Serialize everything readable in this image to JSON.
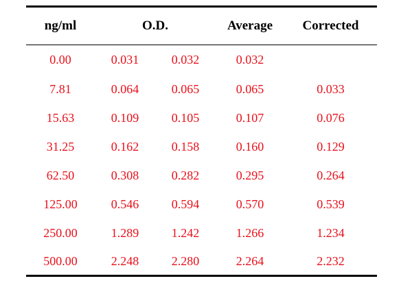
{
  "table": {
    "headers": {
      "concentration": "ng/ml",
      "od": "O.D.",
      "average": "Average",
      "corrected": "Corrected"
    },
    "rows": [
      {
        "concentration": "0.00",
        "od1": "0.031",
        "od2": "0.032",
        "average": "0.032",
        "corrected": ""
      },
      {
        "concentration": "7.81",
        "od1": "0.064",
        "od2": "0.065",
        "average": "0.065",
        "corrected": "0.033"
      },
      {
        "concentration": "15.63",
        "od1": "0.109",
        "od2": "0.105",
        "average": "0.107",
        "corrected": "0.076"
      },
      {
        "concentration": "31.25",
        "od1": "0.162",
        "od2": "0.158",
        "average": "0.160",
        "corrected": "0.129"
      },
      {
        "concentration": "62.50",
        "od1": "0.308",
        "od2": "0.282",
        "average": "0.295",
        "corrected": "0.264"
      },
      {
        "concentration": "125.00",
        "od1": "0.546",
        "od2": "0.594",
        "average": "0.570",
        "corrected": "0.539"
      },
      {
        "concentration": "250.00",
        "od1": "1.289",
        "od2": "1.242",
        "average": "1.266",
        "corrected": "1.234"
      },
      {
        "concentration": "500.00",
        "od1": "2.248",
        "od2": "2.280",
        "average": "2.264",
        "corrected": "2.232"
      }
    ]
  },
  "colors": {
    "data_text": "#e8101a",
    "header_text": "#000000",
    "rules": "#000000"
  }
}
